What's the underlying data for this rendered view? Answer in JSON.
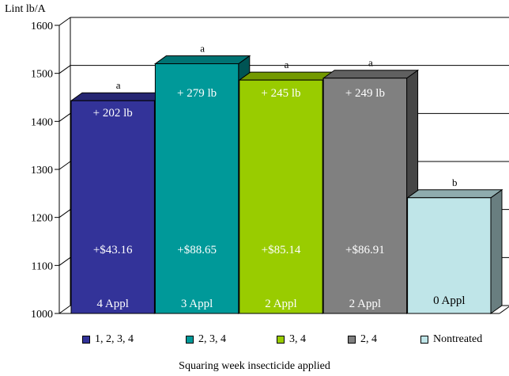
{
  "chart_data": {
    "type": "bar",
    "ylabel": "Lint lb/A",
    "xlabel": "Squaring week insecticide applied",
    "ylim": [
      1000,
      1600
    ],
    "yticks": [
      "1000",
      "1100",
      "1200",
      "1300",
      "1400",
      "1500",
      "1600"
    ],
    "grid": true,
    "legend_position": "bottom",
    "series": [
      {
        "name": "1, 2, 3, 4",
        "value": 1443,
        "letter": "a",
        "gain": "+ 202 lb",
        "money": "+$43.16",
        "appl": "4 Appl",
        "color": "#333399",
        "text_color": "#ffffff"
      },
      {
        "name": "2, 3, 4",
        "value": 1520,
        "letter": "a",
        "gain": "+ 279 lb",
        "money": "+$88.65",
        "appl": "3 Appl",
        "color": "#009999",
        "text_color": "#ffffff"
      },
      {
        "name": "3, 4",
        "value": 1486,
        "letter": "a",
        "gain": "+ 245 lb",
        "money": "+$85.14",
        "appl": "2 Appl",
        "color": "#99cc00",
        "text_color": "#ffffff"
      },
      {
        "name": "2, 4",
        "value": 1490,
        "letter": "a",
        "gain": "+ 249 lb",
        "money": "+$86.91",
        "appl": "2 Appl",
        "color": "#808080",
        "text_color": "#ffffff"
      },
      {
        "name": "Nontreated",
        "value": 1241,
        "letter": "b",
        "gain": "",
        "money": "",
        "appl": "0 Appl",
        "color": "#bfe5e8",
        "text_color": "#000000"
      }
    ]
  }
}
